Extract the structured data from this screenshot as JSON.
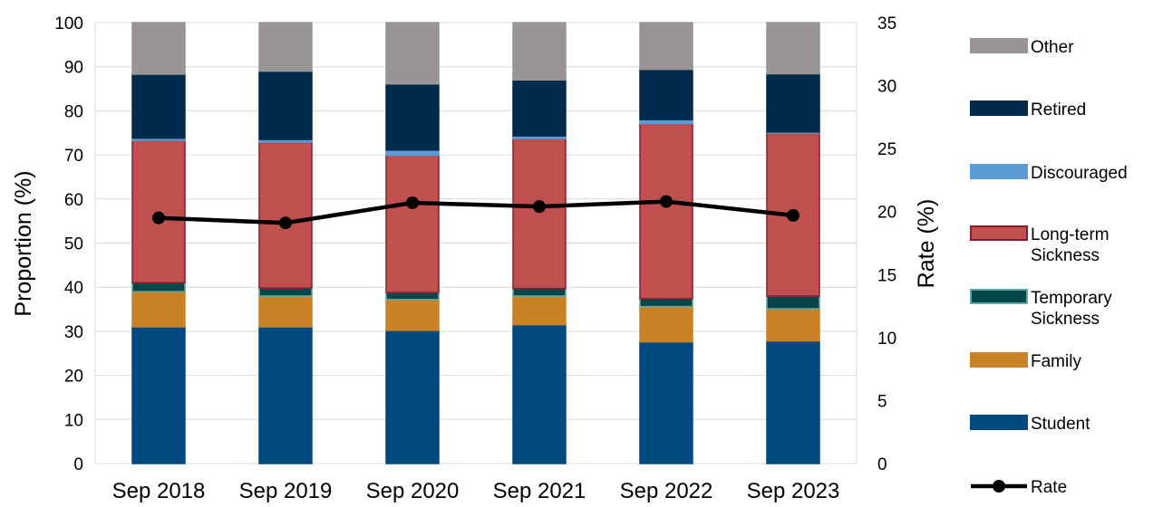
{
  "chart_data": {
    "type": "bar",
    "stacked": true,
    "categories": [
      "Sep 2018",
      "Sep 2019",
      "Sep 2020",
      "Sep 2021",
      "Sep 2022",
      "Sep 2023"
    ],
    "ylabel": "Proportion (%)",
    "y2label": "Rate (%)",
    "ylim": [
      0,
      100
    ],
    "y2lim": [
      0,
      35
    ],
    "yticks": [
      "0",
      "10",
      "20",
      "30",
      "40",
      "50",
      "60",
      "70",
      "80",
      "90",
      "100"
    ],
    "y2ticks": [
      "0",
      "5",
      "10",
      "15",
      "20",
      "25",
      "30",
      "35"
    ],
    "grid": true,
    "legend_position": "right",
    "series": [
      {
        "name": "Student",
        "color": "#004a80",
        "edge": "#004a80",
        "values": [
          31.0,
          31.0,
          30.2,
          31.5,
          27.6,
          27.8
        ]
      },
      {
        "name": "Family",
        "color": "#c98326",
        "edge": "#c98326",
        "values": [
          8.0,
          7.0,
          7.0,
          6.5,
          8.0,
          7.3
        ]
      },
      {
        "name": "Temporary Sickness",
        "color": "#004548",
        "edge": "#5fa8a8",
        "values": [
          2.0,
          1.8,
          1.6,
          1.7,
          1.8,
          2.9
        ]
      },
      {
        "name": "Long-term Sickness",
        "color": "#c0504d",
        "edge": "#8b1a2c",
        "values": [
          32.3,
          33.1,
          31.1,
          34.0,
          39.7,
          37.0
        ]
      },
      {
        "name": "Discouraged",
        "color": "#5b9bd5",
        "edge": "#5b9bd5",
        "values": [
          0.5,
          0.6,
          1.2,
          0.6,
          0.9,
          0.2
        ]
      },
      {
        "name": "Retired",
        "color": "#002b4c",
        "edge": "#002b4c",
        "values": [
          14.5,
          15.5,
          15.0,
          12.7,
          11.4,
          13.2
        ]
      },
      {
        "name": "Other",
        "color": "#999595",
        "edge": "#999595",
        "values": [
          11.7,
          11.0,
          13.9,
          13.0,
          10.6,
          11.6
        ]
      }
    ],
    "line_series": {
      "name": "Rate",
      "axis": "right",
      "color": "#000000",
      "values": [
        19.5,
        19.1,
        20.7,
        20.4,
        20.8,
        19.7
      ]
    }
  }
}
